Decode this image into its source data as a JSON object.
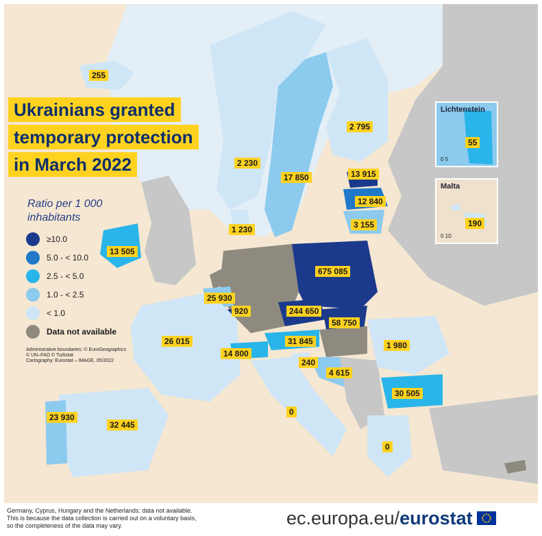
{
  "title_lines": [
    "Ukrainians granted",
    "temporary protection",
    "in March 2022"
  ],
  "legend": {
    "heading_lines": [
      "Ratio per 1 000",
      "inhabitants"
    ],
    "items": [
      {
        "label": "≥10.0",
        "color": "#1b3a8c"
      },
      {
        "label": "5.0 - < 10.0",
        "color": "#1f78c8"
      },
      {
        "label": "2.5 - < 5.0",
        "color": "#29b5ea"
      },
      {
        "label": "1.0 - < 2.5",
        "color": "#8ccaee"
      },
      {
        "label": "< 1.0",
        "color": "#cfe6f6"
      },
      {
        "label": "Data not available",
        "color": "#8e8a80"
      }
    ]
  },
  "credits": [
    "Administrative boundaries: © EuroGeographics",
    "© UN–FAO © Turkstat",
    "Cartography: Eurostat – IMAGE, 05/2022"
  ],
  "map_values": [
    {
      "country": "Iceland",
      "value": "255"
    },
    {
      "country": "Finland",
      "value": "2 795"
    },
    {
      "country": "Norway",
      "value": "2 230"
    },
    {
      "country": "Sweden",
      "value": "17 850"
    },
    {
      "country": "Estonia",
      "value": "13 915"
    },
    {
      "country": "Latvia",
      "value": "12 840"
    },
    {
      "country": "Lithuania",
      "value": "3 155"
    },
    {
      "country": "Denmark",
      "value": "1 230"
    },
    {
      "country": "Ireland",
      "value": "13 505"
    },
    {
      "country": "Poland",
      "value": "675 085"
    },
    {
      "country": "Belgium",
      "value": "25 930"
    },
    {
      "country": "Luxembourg",
      "value": "920"
    },
    {
      "country": "Czechia",
      "value": "244 650"
    },
    {
      "country": "Slovakia",
      "value": "58 750"
    },
    {
      "country": "France",
      "value": "26 015"
    },
    {
      "country": "Austria",
      "value": "31 845"
    },
    {
      "country": "Romania",
      "value": "1 980"
    },
    {
      "country": "Switzerland",
      "value": "14 800"
    },
    {
      "country": "Slovenia",
      "value": "240"
    },
    {
      "country": "Croatia",
      "value": "4 615"
    },
    {
      "country": "Bulgaria",
      "value": "30 505"
    },
    {
      "country": "Portugal",
      "value": "23 930"
    },
    {
      "country": "Spain",
      "value": "32 445"
    },
    {
      "country": "Italy",
      "value": "0"
    },
    {
      "country": "Greece",
      "value": "0"
    }
  ],
  "insets": {
    "liechtenstein": {
      "title": "Lichtenstein",
      "value": "55",
      "scale": "0    5"
    },
    "malta": {
      "title": "Malta",
      "value": "190",
      "scale": "0    10"
    }
  },
  "footnote": [
    "Germany, Cyprus, Hungary and the Netherlands: data not available.",
    "This is because the data collection is carried out on a voluntary basis,",
    "so the completeness of the data may vary."
  ],
  "brand": {
    "prefix": "ec.europa.eu/",
    "name": "eurostat"
  }
}
